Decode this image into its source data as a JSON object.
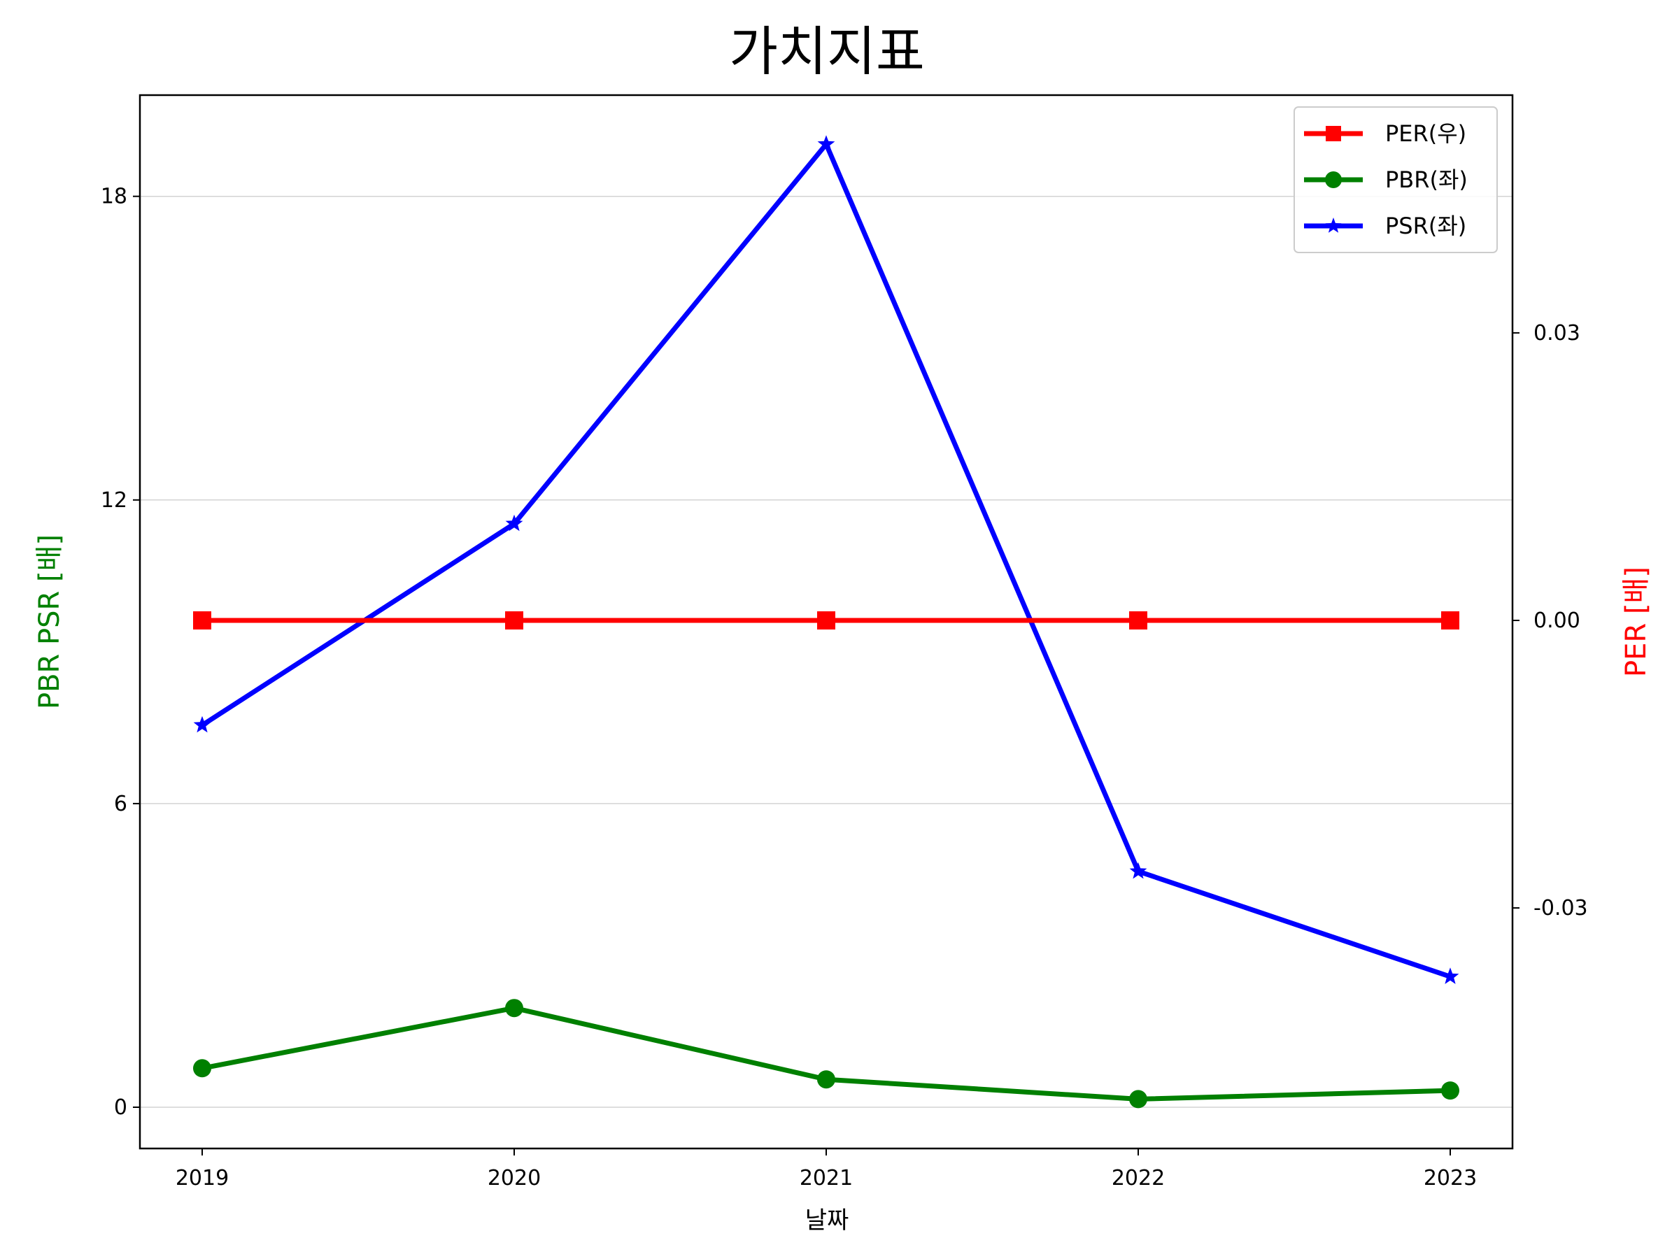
{
  "chart_data": {
    "type": "line",
    "title": "가치지표",
    "xlabel": "날짜",
    "ylabel_left": "PBR PSR [배]",
    "ylabel_right": "PER [배]",
    "categories": [
      "2019",
      "2020",
      "2021",
      "2022",
      "2023"
    ],
    "y_left": {
      "ticks": [
        0,
        6,
        12,
        18
      ],
      "tick_labels": [
        "0",
        "6",
        "12",
        "18"
      ]
    },
    "y_right": {
      "ticks": [
        -0.03,
        0.0,
        0.03
      ],
      "tick_labels": [
        "-0.03",
        "0.00",
        "0.03"
      ]
    },
    "grid": "horizontal (left axis)",
    "legend_position": "top-right",
    "series": [
      {
        "name": "PER(우)",
        "axis": "right",
        "color": "#ff0000",
        "marker": "square",
        "values": [
          0,
          0,
          0,
          0,
          0
        ]
      },
      {
        "name": "PBR(좌)",
        "axis": "left",
        "color": "#008000",
        "marker": "circle",
        "values": [
          0.77,
          1.96,
          0.55,
          0.16,
          0.33
        ]
      },
      {
        "name": "PSR(좌)",
        "axis": "left",
        "color": "#0000ff",
        "marker": "star",
        "values": [
          7.55,
          11.53,
          19.03,
          4.66,
          2.58
        ]
      }
    ]
  }
}
